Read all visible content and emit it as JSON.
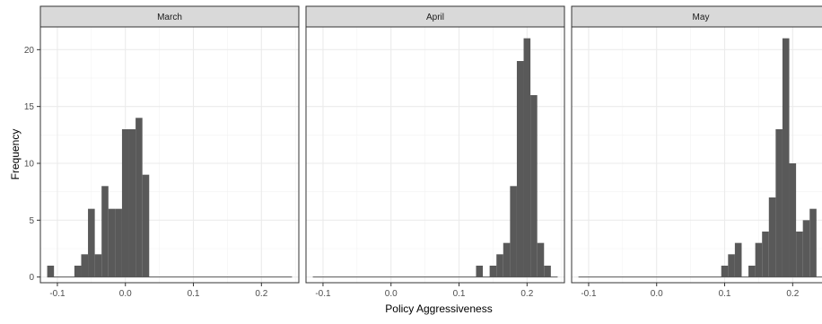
{
  "chart_data": {
    "type": "bar",
    "subtype": "faceted-histogram",
    "xlabel": "Policy Aggressiveness",
    "ylabel": "Frequency",
    "xlim": [
      -0.125,
      0.255
    ],
    "ylim": [
      -0.5,
      22
    ],
    "x_ticks": [
      -0.1,
      0.0,
      0.1,
      0.2
    ],
    "x_tick_labels": [
      "-0.1",
      "0.0",
      "0.1",
      "0.2"
    ],
    "y_ticks": [
      0,
      5,
      10,
      15,
      20
    ],
    "y_tick_labels": [
      "0",
      "5",
      "10",
      "15",
      "20"
    ],
    "bin_width": 0.01,
    "bar_color": "#595959",
    "grid": true,
    "facets": [
      {
        "label": "March",
        "bins": [
          {
            "x": -0.11,
            "count": 1
          },
          {
            "x": -0.1,
            "count": 0
          },
          {
            "x": -0.09,
            "count": 0
          },
          {
            "x": -0.08,
            "count": 0
          },
          {
            "x": -0.07,
            "count": 1
          },
          {
            "x": -0.06,
            "count": 2
          },
          {
            "x": -0.05,
            "count": 6
          },
          {
            "x": -0.04,
            "count": 2
          },
          {
            "x": -0.03,
            "count": 8
          },
          {
            "x": -0.02,
            "count": 6
          },
          {
            "x": -0.01,
            "count": 6
          },
          {
            "x": 0.0,
            "count": 13
          },
          {
            "x": 0.01,
            "count": 13
          },
          {
            "x": 0.02,
            "count": 14
          },
          {
            "x": 0.03,
            "count": 9
          }
        ],
        "x_extent": [
          -0.11,
          0.24
        ]
      },
      {
        "label": "April",
        "bins": [
          {
            "x": 0.13,
            "count": 1
          },
          {
            "x": 0.14,
            "count": 0
          },
          {
            "x": 0.15,
            "count": 1
          },
          {
            "x": 0.16,
            "count": 2
          },
          {
            "x": 0.17,
            "count": 3
          },
          {
            "x": 0.18,
            "count": 8
          },
          {
            "x": 0.19,
            "count": 19
          },
          {
            "x": 0.2,
            "count": 21
          },
          {
            "x": 0.21,
            "count": 16
          },
          {
            "x": 0.22,
            "count": 3
          },
          {
            "x": 0.23,
            "count": 1
          }
        ],
        "x_extent": [
          -0.11,
          0.24
        ]
      },
      {
        "label": "May",
        "bins": [
          {
            "x": 0.1,
            "count": 1
          },
          {
            "x": 0.11,
            "count": 2
          },
          {
            "x": 0.12,
            "count": 3
          },
          {
            "x": 0.13,
            "count": 0
          },
          {
            "x": 0.14,
            "count": 1
          },
          {
            "x": 0.15,
            "count": 3
          },
          {
            "x": 0.16,
            "count": 4
          },
          {
            "x": 0.17,
            "count": 7
          },
          {
            "x": 0.18,
            "count": 13
          },
          {
            "x": 0.19,
            "count": 21
          },
          {
            "x": 0.2,
            "count": 10
          },
          {
            "x": 0.21,
            "count": 4
          },
          {
            "x": 0.22,
            "count": 5
          },
          {
            "x": 0.23,
            "count": 6
          }
        ],
        "x_extent": [
          -0.11,
          0.24
        ]
      }
    ]
  }
}
